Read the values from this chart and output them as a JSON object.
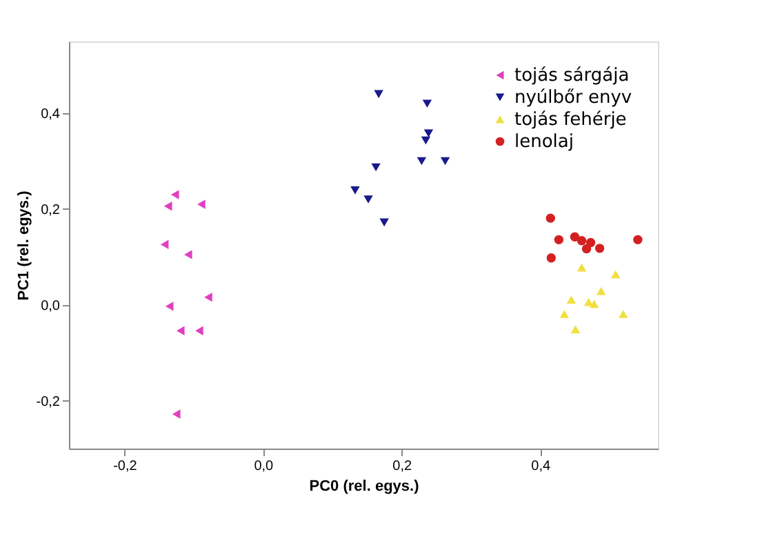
{
  "chart_data": {
    "type": "scatter",
    "xlabel": "PC0 (rel. egys.)",
    "ylabel": "PC1 (rel. egys.)",
    "xlim": [
      -0.28,
      0.57
    ],
    "ylim": [
      -0.3,
      0.55
    ],
    "xticks": [
      {
        "value": -0.2,
        "label": "-0,2"
      },
      {
        "value": 0,
        "label": "0,0"
      },
      {
        "value": 0.2,
        "label": "0,2"
      },
      {
        "value": 0.4,
        "label": "0,4"
      }
    ],
    "yticks": [
      {
        "value": -0.2,
        "label": "-0,2"
      },
      {
        "value": 0,
        "label": "0,0"
      },
      {
        "value": 0.2,
        "label": "0,2"
      },
      {
        "value": 0.4,
        "label": "0,4"
      }
    ],
    "grid": false,
    "legend": "top right",
    "series": [
      {
        "name": "tojás sárgája",
        "color": "#e040c0",
        "marker": "triangle-left",
        "x": [
          -0.127,
          -0.137,
          -0.089,
          -0.142,
          -0.108,
          -0.079,
          -0.135,
          -0.119,
          -0.092,
          -0.125
        ],
        "values": [
          0.23,
          0.206,
          0.21,
          0.126,
          0.105,
          0.016,
          -0.003,
          -0.054,
          -0.054,
          -0.228
        ]
      },
      {
        "name": "nyúlbőr enyv",
        "color": "#1a1a8c",
        "marker": "triangle-down",
        "x": [
          0.167,
          0.237,
          0.239,
          0.235,
          0.163,
          0.229,
          0.263,
          0.133,
          0.152,
          0.175
        ],
        "values": [
          0.44,
          0.42,
          0.358,
          0.343,
          0.287,
          0.3,
          0.3,
          0.239,
          0.22,
          0.172
        ]
      },
      {
        "name": "tojás fehérje",
        "color": "#f0e040",
        "marker": "triangle-up",
        "x": [
          0.46,
          0.509,
          0.488,
          0.445,
          0.47,
          0.478,
          0.435,
          0.52,
          0.451
        ],
        "values": [
          0.078,
          0.064,
          0.029,
          0.011,
          0.006,
          0.002,
          -0.019,
          -0.019,
          -0.051
        ]
      },
      {
        "name": "lenolaj",
        "color": "#d42020",
        "marker": "circle",
        "x": [
          0.415,
          0.427,
          0.45,
          0.46,
          0.473,
          0.467,
          0.486,
          0.541,
          0.416
        ],
        "values": [
          0.181,
          0.136,
          0.142,
          0.134,
          0.13,
          0.117,
          0.118,
          0.136,
          0.098
        ]
      }
    ]
  }
}
